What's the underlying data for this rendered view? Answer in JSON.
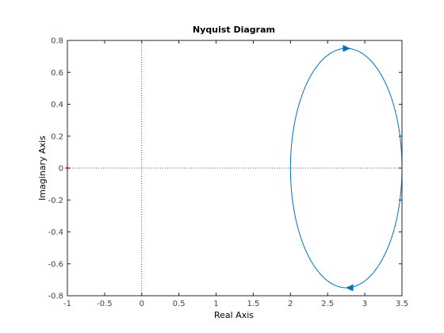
{
  "chart_data": {
    "type": "line",
    "title": "Nyquist Diagram",
    "xlabel": "Real Axis",
    "ylabel": "Imaginary Axis",
    "xlim": [
      -1,
      3.5
    ],
    "ylim": [
      -0.8,
      0.8
    ],
    "xticks": [
      "-1",
      "-0.5",
      "0",
      "0.5",
      "1",
      "1.5",
      "2",
      "2.5",
      "3",
      "3.5"
    ],
    "yticks": [
      "-0.8",
      "-0.6",
      "-0.4",
      "-0.2",
      "0",
      "0.2",
      "0.4",
      "0.6",
      "0.8"
    ],
    "zero_lines": true,
    "critical_point": {
      "x": -1,
      "y": 0,
      "marker": "+"
    },
    "curve": {
      "shape": "ellipse",
      "center": [
        2.75,
        0
      ],
      "x_range": [
        2,
        3.5
      ],
      "y_range": [
        -0.75,
        0.75
      ]
    },
    "direction_arrows": [
      {
        "x": 2.75,
        "y": 0.75,
        "direction": "right"
      },
      {
        "x": 2.8,
        "y": -0.75,
        "direction": "left"
      }
    ],
    "colors": {
      "curve": "#0072bd",
      "critical_point": "#ff0000",
      "axes": "#262626"
    }
  }
}
